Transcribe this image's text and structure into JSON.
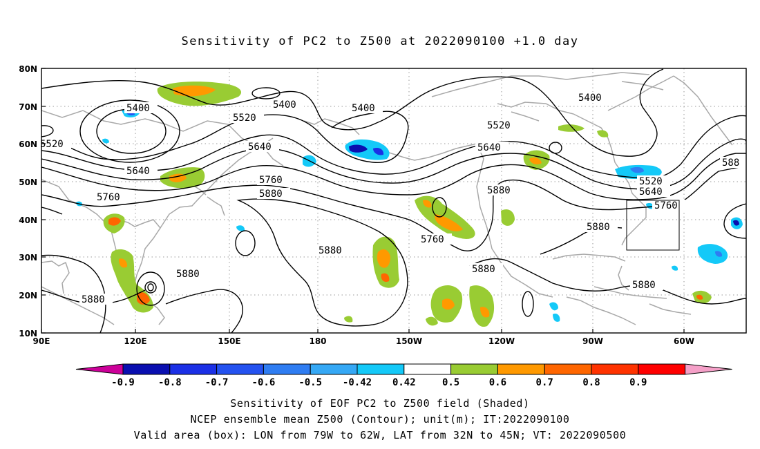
{
  "title": "Sensitivity of PC2 to Z500 at 2022090100 +1.0 day",
  "map": {
    "lon_range": [
      "90E",
      "50W"
    ],
    "lat_range": [
      10,
      80
    ],
    "lat_labels": [
      "80N",
      "70N",
      "60N",
      "50N",
      "40N",
      "30N",
      "20N",
      "10N"
    ],
    "lon_labels": [
      "90E",
      "120E",
      "150E",
      "180",
      "150W",
      "120W",
      "90W",
      "60W"
    ],
    "contour_labels": [
      "5400",
      "5400",
      "5400",
      "5400",
      "5520",
      "5520",
      "5520",
      "5520",
      "5640",
      "5640",
      "5640",
      "5640",
      "5760",
      "5760",
      "5760",
      "5760",
      "5880",
      "5880",
      "5880",
      "5880",
      "5880",
      "5880",
      "5880",
      "5880",
      "588"
    ],
    "valid_box": {
      "lon_from": "79W",
      "lon_to": "62W",
      "lat_from": "32N",
      "lat_to": "45N"
    }
  },
  "colorbar": {
    "labels": [
      "-0.9",
      "-0.8",
      "-0.7",
      "-0.6",
      "-0.5",
      "-0.42",
      "0.42",
      "0.5",
      "0.6",
      "0.7",
      "0.8",
      "0.9"
    ],
    "colors": [
      "#cc0099",
      "#0a0fb0",
      "#1b30e6",
      "#2452f0",
      "#2f7df2",
      "#35a8f5",
      "#14c9f8",
      "#ffffff",
      "#99cc33",
      "#ff9900",
      "#ff6600",
      "#ff3300",
      "#ff0000",
      "#f5a0c8"
    ]
  },
  "captions": [
    "Sensitivity of EOF PC2 to Z500 field (Shaded)",
    "NCEP ensemble mean Z500 (Contour); unit(m); IT:2022090100",
    "Valid area (box): LON from 79W to 62W, LAT from 32N to 45N; VT: 2022090500"
  ]
}
